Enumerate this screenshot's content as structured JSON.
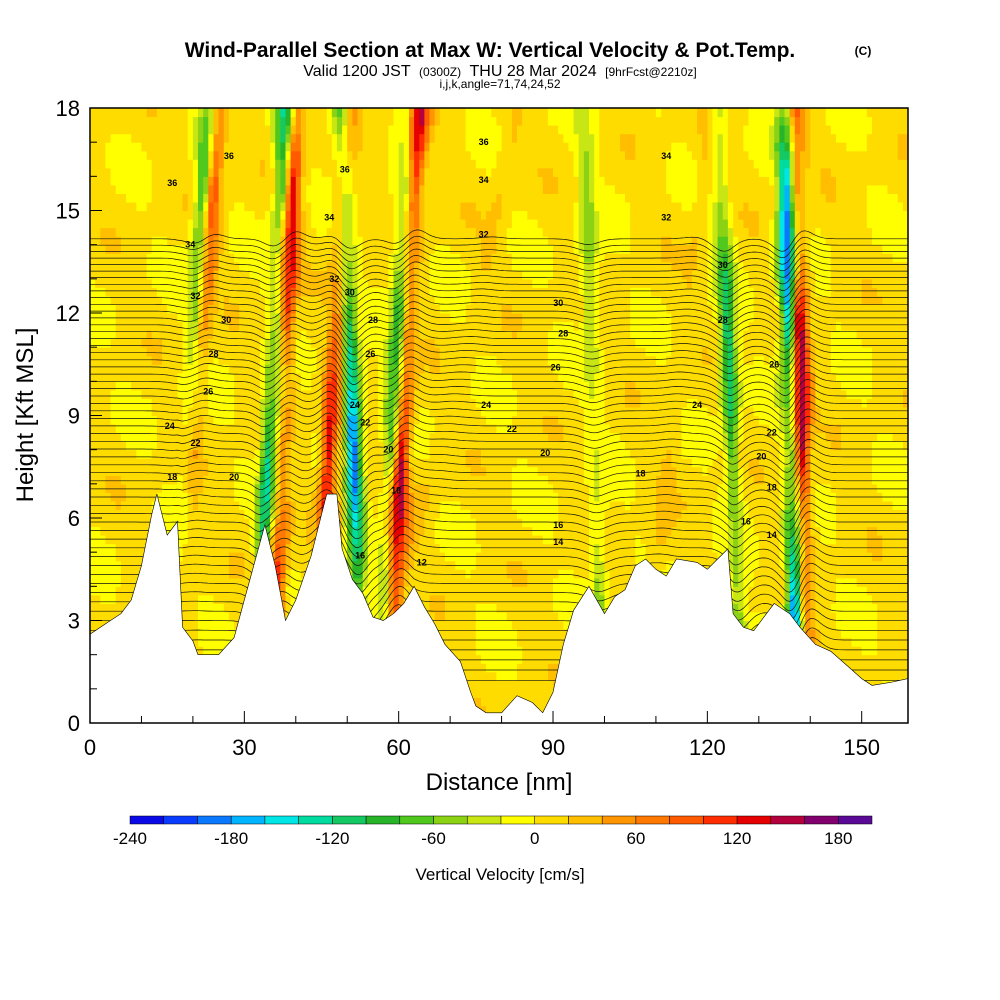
{
  "header": {
    "title": "Wind-Parallel Section at Max W: Vertical Velocity & Pot.Temp.",
    "copyright": "(C)",
    "valid_prefix": "Valid 1200 JST",
    "valid_utc": "(0300Z)",
    "valid_date": "THU 28 Mar 2024",
    "forecast": "[9hrFcst@2210z]",
    "indices": "i,j,k,angle=71,74,24,52"
  },
  "chart_data": {
    "type": "heatmap",
    "xlabel": "Distance [nm]",
    "ylabel": "Height [Kft MSL]",
    "xlim": [
      0,
      159
    ],
    "ylim": [
      0,
      18
    ],
    "xticks": [
      0,
      30,
      60,
      90,
      120,
      150
    ],
    "yticks": [
      0,
      3,
      6,
      9,
      12,
      15,
      18
    ],
    "colorbar": {
      "label": "Vertical Velocity [cm/s]",
      "range": [
        -240,
        200
      ],
      "step": 20,
      "tick_values": [
        -240,
        -180,
        -120,
        -60,
        0,
        60,
        120,
        180
      ],
      "tick_labels": [
        "-240",
        "-180",
        "-120",
        "-60",
        "0",
        "60",
        "120",
        "180"
      ],
      "colors": [
        "#0a0ae6",
        "#0a3cff",
        "#0a78ff",
        "#00b4ff",
        "#00e6e6",
        "#00dca0",
        "#14c864",
        "#28b428",
        "#50c81e",
        "#8cd214",
        "#c8e614",
        "#ffff00",
        "#ffdc00",
        "#ffbe00",
        "#ff9600",
        "#ff7800",
        "#ff5a00",
        "#ff2d00",
        "#e60000",
        "#b4003c",
        "#82006e",
        "#5a0a96"
      ]
    },
    "terrain_kft": [
      [
        0,
        2.6
      ],
      [
        3,
        2.9
      ],
      [
        6,
        3.2
      ],
      [
        8,
        3.6
      ],
      [
        10,
        4.6
      ],
      [
        12,
        6.1
      ],
      [
        13,
        6.7
      ],
      [
        15,
        5.5
      ],
      [
        17,
        5.9
      ],
      [
        18,
        2.8
      ],
      [
        20,
        2.4
      ],
      [
        21,
        2.0
      ],
      [
        25,
        2.0
      ],
      [
        28,
        2.5
      ],
      [
        30,
        3.6
      ],
      [
        32,
        4.7
      ],
      [
        34,
        5.8
      ],
      [
        36,
        4.6
      ],
      [
        38,
        3.0
      ],
      [
        40,
        3.6
      ],
      [
        43,
        4.9
      ],
      [
        45,
        6.1
      ],
      [
        46,
        6.7
      ],
      [
        48,
        6.7
      ],
      [
        49,
        5.1
      ],
      [
        51,
        4.2
      ],
      [
        53,
        3.8
      ],
      [
        55,
        3.1
      ],
      [
        57,
        3.0
      ],
      [
        59,
        3.2
      ],
      [
        61,
        3.5
      ],
      [
        63,
        4.0
      ],
      [
        65,
        3.4
      ],
      [
        67,
        2.9
      ],
      [
        69,
        2.3
      ],
      [
        72,
        1.8
      ],
      [
        74,
        0.9
      ],
      [
        75,
        0.5
      ],
      [
        77,
        0.3
      ],
      [
        80,
        0.3
      ],
      [
        83,
        0.8
      ],
      [
        86,
        0.6
      ],
      [
        88,
        0.3
      ],
      [
        90,
        0.9
      ],
      [
        92,
        2.3
      ],
      [
        94,
        3.3
      ],
      [
        97,
        4.0
      ],
      [
        100,
        3.2
      ],
      [
        102,
        3.7
      ],
      [
        104,
        3.9
      ],
      [
        106,
        4.6
      ],
      [
        108,
        4.8
      ],
      [
        110,
        4.5
      ],
      [
        112,
        4.3
      ],
      [
        114,
        4.8
      ],
      [
        118,
        4.7
      ],
      [
        120,
        4.5
      ],
      [
        122,
        4.8
      ],
      [
        124,
        5.1
      ],
      [
        125,
        3.2
      ],
      [
        127,
        2.8
      ],
      [
        129,
        2.7
      ],
      [
        131,
        3.1
      ],
      [
        133,
        3.5
      ],
      [
        136,
        3.2
      ],
      [
        138,
        2.8
      ],
      [
        141,
        2.3
      ],
      [
        144,
        2.1
      ],
      [
        147,
        1.7
      ],
      [
        150,
        1.3
      ],
      [
        152,
        1.1
      ],
      [
        156,
        1.2
      ],
      [
        159,
        1.3
      ]
    ],
    "updraft_bands": [
      {
        "x_base": 17,
        "x_top": 25,
        "w": 110
      },
      {
        "x_base": 36,
        "x_top": 40,
        "w": 140
      },
      {
        "x_base": 59,
        "x_top": 64,
        "w": 150
      },
      {
        "x_base": 46,
        "x_top": 50,
        "w": 130
      },
      {
        "x_base": 139,
        "x_top": 137,
        "w": 180
      },
      {
        "x_base": 110,
        "x_top": 121,
        "w": 20
      },
      {
        "x_base": 60,
        "x_top": 83,
        "w": 20
      }
    ],
    "downdraft_bands": [
      {
        "x_base": 17,
        "x_top": 23,
        "w": -110
      },
      {
        "x_base": 34,
        "x_top": 38,
        "w": -140
      },
      {
        "x_base": 52,
        "x_top": 49,
        "w": -200
      },
      {
        "x_base": 57,
        "x_top": 62,
        "w": -110
      },
      {
        "x_base": 99,
        "x_top": 96,
        "w": -60
      },
      {
        "x_base": 126,
        "x_top": 122,
        "w": -130
      },
      {
        "x_base": 137,
        "x_top": 135,
        "w": -220
      }
    ],
    "isentrope_labels": [
      {
        "x": 16,
        "y": 15.8,
        "text": "36"
      },
      {
        "x": 27,
        "y": 16.6,
        "text": "36"
      },
      {
        "x": 19.5,
        "y": 14.0,
        "text": "34"
      },
      {
        "x": 20.5,
        "y": 12.5,
        "text": "32"
      },
      {
        "x": 26.5,
        "y": 11.8,
        "text": "30"
      },
      {
        "x": 24,
        "y": 10.8,
        "text": "28"
      },
      {
        "x": 23,
        "y": 9.7,
        "text": "26"
      },
      {
        "x": 15.5,
        "y": 8.7,
        "text": "24"
      },
      {
        "x": 20.5,
        "y": 8.2,
        "text": "22"
      },
      {
        "x": 28,
        "y": 7.2,
        "text": "20"
      },
      {
        "x": 16,
        "y": 7.2,
        "text": "18"
      },
      {
        "x": 49.5,
        "y": 16.2,
        "text": "36"
      },
      {
        "x": 46.5,
        "y": 14.8,
        "text": "34"
      },
      {
        "x": 47.5,
        "y": 13.0,
        "text": "32"
      },
      {
        "x": 50.5,
        "y": 12.6,
        "text": "30"
      },
      {
        "x": 55,
        "y": 11.8,
        "text": "28"
      },
      {
        "x": 54.5,
        "y": 10.8,
        "text": "26"
      },
      {
        "x": 51.5,
        "y": 9.3,
        "text": "24"
      },
      {
        "x": 53.5,
        "y": 8.8,
        "text": "22"
      },
      {
        "x": 58,
        "y": 8.0,
        "text": "20"
      },
      {
        "x": 59.5,
        "y": 6.8,
        "text": "18"
      },
      {
        "x": 52.5,
        "y": 4.9,
        "text": "16"
      },
      {
        "x": 64.5,
        "y": 4.7,
        "text": "12"
      },
      {
        "x": 76.5,
        "y": 17.0,
        "text": "36"
      },
      {
        "x": 76.5,
        "y": 15.9,
        "text": "34"
      },
      {
        "x": 76.5,
        "y": 14.3,
        "text": "32"
      },
      {
        "x": 91,
        "y": 12.3,
        "text": "30"
      },
      {
        "x": 92,
        "y": 11.4,
        "text": "28"
      },
      {
        "x": 90.5,
        "y": 10.4,
        "text": "26"
      },
      {
        "x": 77,
        "y": 9.3,
        "text": "24"
      },
      {
        "x": 82,
        "y": 8.6,
        "text": "22"
      },
      {
        "x": 88.5,
        "y": 7.9,
        "text": "20"
      },
      {
        "x": 107,
        "y": 7.3,
        "text": "18"
      },
      {
        "x": 91,
        "y": 5.8,
        "text": "16"
      },
      {
        "x": 91,
        "y": 5.3,
        "text": "14"
      },
      {
        "x": 112,
        "y": 16.6,
        "text": "34"
      },
      {
        "x": 112,
        "y": 14.8,
        "text": "32"
      },
      {
        "x": 123,
        "y": 13.4,
        "text": "30"
      },
      {
        "x": 123,
        "y": 11.8,
        "text": "28"
      },
      {
        "x": 133,
        "y": 10.5,
        "text": "26"
      },
      {
        "x": 118,
        "y": 9.3,
        "text": "24"
      },
      {
        "x": 132.5,
        "y": 8.5,
        "text": "22"
      },
      {
        "x": 130.5,
        "y": 7.8,
        "text": "20"
      },
      {
        "x": 132.5,
        "y": 6.9,
        "text": "18"
      },
      {
        "x": 127.5,
        "y": 5.9,
        "text": "16"
      },
      {
        "x": 132.5,
        "y": 5.5,
        "text": "14"
      }
    ]
  }
}
